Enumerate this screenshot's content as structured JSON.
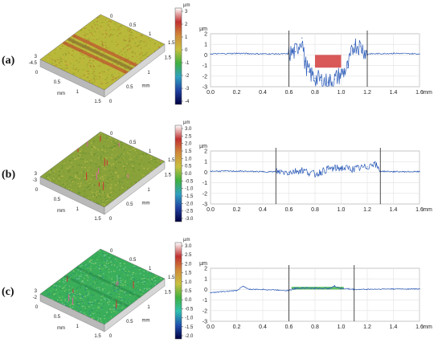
{
  "panels": [
    {
      "label": "(a)",
      "surface": {
        "axis_unit": "mm",
        "x_ticks": [
          "0",
          "0.5",
          "1",
          "1.5"
        ],
        "y_ticks": [
          "0",
          "0.5",
          "1",
          "1.5"
        ],
        "z_ticks": [
          "3",
          "-4.5"
        ],
        "base_color": "#b8b83a",
        "accent_color": "#c0322a"
      },
      "colorbar": {
        "unit": "µm",
        "ticks": [
          "3",
          "2",
          "1",
          "0",
          "-1",
          "-2",
          "-3",
          "-4"
        ],
        "colors": [
          "#ffffff",
          "#c03030",
          "#d08a3a",
          "#c8c040",
          "#40b040",
          "#30a0c0",
          "#2040a0",
          "#000040"
        ]
      },
      "profile": {
        "xlabel": "mm",
        "ylabel": "µm",
        "x_ticks": [
          "0.0",
          "0.2",
          "0.4",
          "0.6",
          "0.8",
          "1.0",
          "1.2",
          "1.4",
          "1.6"
        ],
        "y_ticks": [
          "2",
          "1",
          "0",
          "-1",
          "-2",
          "-3"
        ],
        "markers": [
          0.6,
          1.2
        ],
        "highlight": [
          0.8,
          1.0
        ],
        "highlight_color": "#d03030"
      }
    },
    {
      "label": "(b)",
      "surface": {
        "axis_unit": "mm",
        "x_ticks": [
          "0",
          "0.5",
          "1",
          "1.5"
        ],
        "y_ticks": [
          "0",
          "0.5",
          "1",
          "1.5"
        ],
        "z_ticks": [
          "3",
          "-3"
        ],
        "base_color": "#8aa23a",
        "accent_color": "#c0322a"
      },
      "colorbar": {
        "unit": "µm",
        "ticks": [
          "3.0",
          "2.5",
          "2.0",
          "1.5",
          "1.0",
          "0.5",
          "0.0",
          "-0.5",
          "-1.0",
          "-1.5",
          "-2.0",
          "-2.5",
          "-3.0"
        ],
        "colors": [
          "#ffffff",
          "#c03030",
          "#d08a3a",
          "#c8c040",
          "#40b040",
          "#30a0c0",
          "#2040a0",
          "#000040"
        ]
      },
      "profile": {
        "xlabel": "mm",
        "ylabel": "µm",
        "x_ticks": [
          "0.0",
          "0.2",
          "0.4",
          "0.6",
          "0.8",
          "1.0",
          "1.2",
          "1.4",
          "1.6"
        ],
        "y_ticks": [
          "2",
          "1",
          "0",
          "-1",
          "-2",
          "-3"
        ],
        "markers": [
          0.5,
          1.3
        ],
        "highlight": null,
        "highlight_color": ""
      }
    },
    {
      "label": "(c)",
      "surface": {
        "axis_unit": "mm",
        "x_ticks": [
          "0",
          "0.5",
          "1",
          "1.5"
        ],
        "y_ticks": [
          "0",
          "0.5",
          "1",
          "1.5"
        ],
        "z_ticks": [
          "3",
          "-2"
        ],
        "base_color": "#3aae5a",
        "accent_color": "#c0322a"
      },
      "colorbar": {
        "unit": "µm",
        "ticks": [
          "3.0",
          "2.5",
          "2.0",
          "1.5",
          "1.0",
          "0.5",
          "0.0",
          "-0.5",
          "-1.0",
          "-1.5",
          "-2.0"
        ],
        "colors": [
          "#ffffff",
          "#c03030",
          "#d08a3a",
          "#c8c040",
          "#40b040",
          "#30c0b0",
          "#2050b0",
          "#000040"
        ]
      },
      "profile": {
        "xlabel": "mm",
        "ylabel": "µm",
        "x_ticks": [
          "0.0",
          "0.2",
          "0.4",
          "0.6",
          "0.8",
          "1.0",
          "1.2",
          "1.4",
          "1.6"
        ],
        "y_ticks": [
          "2",
          "1",
          "0",
          "-1",
          "-2",
          "-3"
        ],
        "markers": [
          0.6,
          1.1
        ],
        "highlight": [
          0.62,
          1.02
        ],
        "highlight_color": "#3ab040"
      }
    }
  ],
  "chart_data": [
    {
      "type": "line",
      "panel": "(a)",
      "xlabel": "mm",
      "ylabel": "µm",
      "xlim": [
        0.0,
        1.6
      ],
      "ylim": [
        -3,
        2
      ],
      "markers_mm": [
        0.6,
        1.2
      ],
      "x": [
        0.0,
        0.2,
        0.4,
        0.6,
        0.65,
        0.7,
        0.72,
        0.75,
        0.8,
        0.85,
        0.9,
        0.95,
        1.0,
        1.05,
        1.1,
        1.15,
        1.2,
        1.4,
        1.6
      ],
      "y": [
        0.1,
        0.15,
        0.1,
        0.1,
        0.3,
        1.6,
        -0.6,
        -1.6,
        -2.2,
        -2.4,
        -2.6,
        -2.3,
        -1.8,
        -1.2,
        1.0,
        0.8,
        0.1,
        0.15,
        0.1
      ]
    },
    {
      "type": "line",
      "panel": "(b)",
      "xlabel": "mm",
      "ylabel": "µm",
      "xlim": [
        0.0,
        1.6
      ],
      "ylim": [
        -3,
        2
      ],
      "markers_mm": [
        0.5,
        1.3
      ],
      "x": [
        0.0,
        0.2,
        0.4,
        0.5,
        0.6,
        0.7,
        0.8,
        0.9,
        1.0,
        1.1,
        1.2,
        1.25,
        1.3,
        1.4,
        1.6
      ],
      "y": [
        0.1,
        0.1,
        0.05,
        0.05,
        0.0,
        0.2,
        -0.2,
        0.3,
        0.4,
        0.3,
        0.5,
        0.9,
        0.1,
        0.05,
        0.05
      ]
    },
    {
      "type": "line",
      "panel": "(c)",
      "xlabel": "mm",
      "ylabel": "µm",
      "xlim": [
        0.0,
        1.6
      ],
      "ylim": [
        -3,
        2
      ],
      "markers_mm": [
        0.6,
        1.1
      ],
      "x": [
        0.0,
        0.2,
        0.25,
        0.3,
        0.4,
        0.6,
        0.65,
        0.7,
        0.8,
        0.9,
        0.95,
        1.0,
        1.1,
        1.4,
        1.6
      ],
      "y": [
        -0.3,
        -0.1,
        0.3,
        0.0,
        0.0,
        -0.1,
        0.1,
        0.15,
        0.1,
        0.1,
        0.3,
        0.1,
        0.0,
        0.05,
        0.05
      ]
    }
  ]
}
